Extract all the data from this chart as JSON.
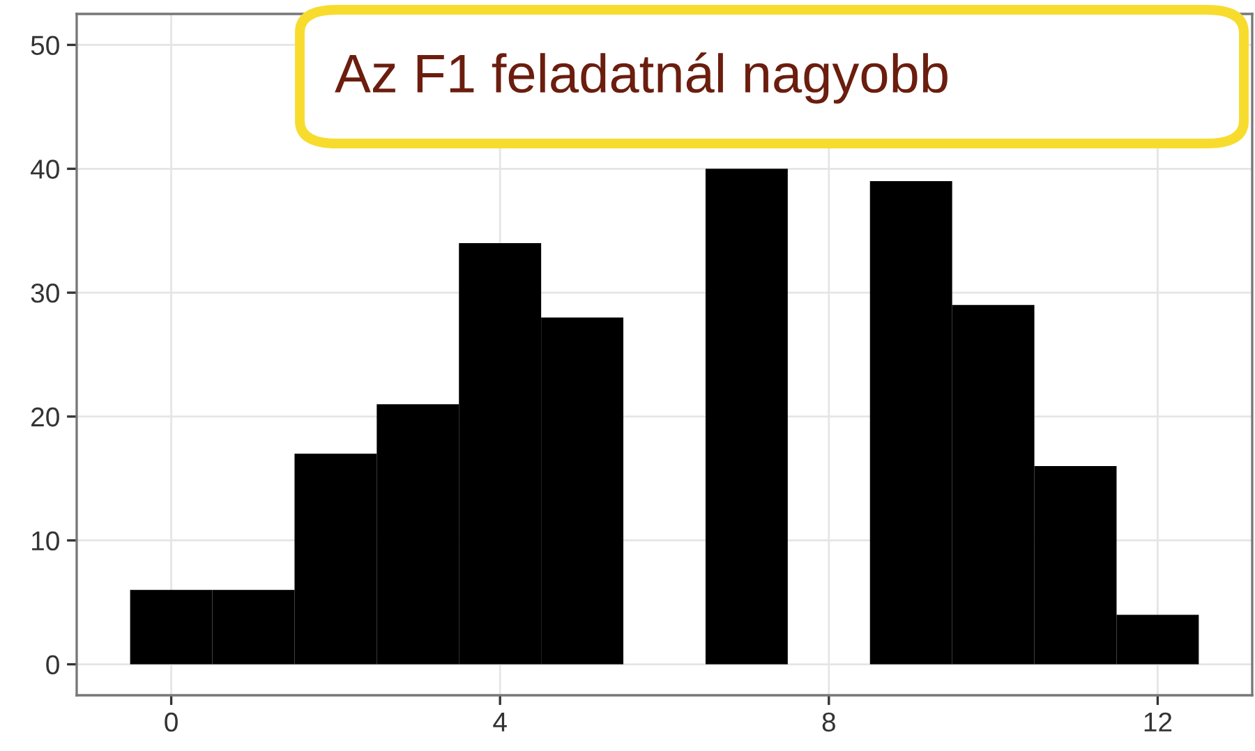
{
  "chart_data": {
    "type": "histogram",
    "bins": [
      -0.5,
      0.5,
      1.5,
      2.5,
      3.5,
      4.5,
      5.5,
      6.5,
      7.5,
      8.5,
      9.5,
      10.5,
      11.5,
      12.5
    ],
    "values": [
      6,
      6,
      17,
      21,
      34,
      28,
      null,
      40,
      null,
      39,
      29,
      16,
      4
    ],
    "color": "#000000",
    "xlim": [
      -1.15,
      13.15
    ],
    "ylim": [
      -2.5,
      52.5
    ],
    "xticks": [
      0,
      4,
      8,
      12
    ],
    "yticks": [
      0,
      10,
      20,
      30,
      40,
      50
    ],
    "grid": true,
    "annotations": [
      "Az F1 feladatnál nagyobb"
    ]
  }
}
